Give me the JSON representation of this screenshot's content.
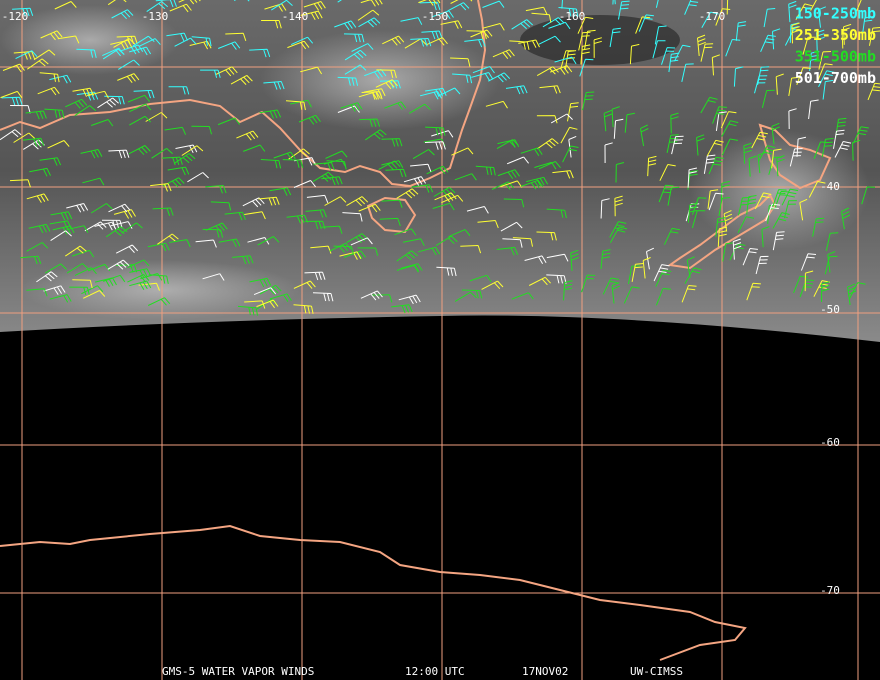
{
  "longitude_labels": [
    "-120",
    "-130",
    "-140",
    "-150",
    "-160",
    "-170"
  ],
  "latitude_labels": [
    "-40",
    "-50",
    "-60",
    "-70"
  ],
  "legend": [
    {
      "label": "150-250mb",
      "color": "#33ffff"
    },
    {
      "label": "251-350mb",
      "color": "#ffff33"
    },
    {
      "label": "351-500mb",
      "color": "#22dd22"
    },
    {
      "label": "501-700mb",
      "color": "#ffffff"
    }
  ],
  "footer": [
    "GMS-5 WATER VAPOR WINDS",
    "12:00 UTC",
    "17NOV02",
    "UW-CIMSS"
  ]
}
